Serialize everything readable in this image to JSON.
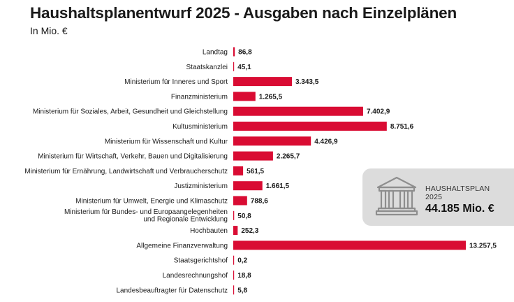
{
  "header": {
    "title": "Haushaltsplanentwurf 2025 - Ausgaben nach Einzelplänen",
    "subtitle": "In Mio. €"
  },
  "summary": {
    "label": "HAUSHALTSPLAN 2025",
    "total": "44.185 Mio. €",
    "icon": "bank-building-icon"
  },
  "colors": {
    "bar": "#d90c33",
    "summary_bg": "#dcdcdc",
    "icon": "#8e8e8e"
  },
  "chart_data": {
    "type": "bar",
    "orientation": "horizontal",
    "title": "Haushaltsplanentwurf 2025 - Ausgaben nach Einzelplänen",
    "unit": "In Mio. €",
    "categories": [
      [
        "Landtag"
      ],
      [
        "Staatskanzlei"
      ],
      [
        "Ministerium für Inneres und Sport"
      ],
      [
        "Finanzministerium"
      ],
      [
        "Ministerium für Soziales, Arbeit, Gesundheit und Gleichstellung"
      ],
      [
        "Kultusministerium"
      ],
      [
        "Ministerium für Wissenschaft und Kultur"
      ],
      [
        "Ministerium für Wirtschaft, Verkehr, Bauen und Digitalisierung"
      ],
      [
        "Ministerium für Ernährung, Landwirtschaft und Verbraucherschutz"
      ],
      [
        "Justizministerium"
      ],
      [
        "Ministerium für Umwelt, Energie und Klimaschutz"
      ],
      [
        "Ministerium für Bundes- und Europaangelegenheiten",
        "und Regionale Entwicklung"
      ],
      [
        "Hochbauten"
      ],
      [
        "Allgemeine Finanzverwaltung"
      ],
      [
        "Staatsgerichtshof"
      ],
      [
        "Landesrechnungshof"
      ],
      [
        "Landesbeauftragter für Datenschutz"
      ]
    ],
    "values": [
      86.8,
      45.1,
      3343.5,
      1265.5,
      7402.9,
      8751.6,
      4426.9,
      2265.7,
      561.5,
      1661.5,
      788.6,
      50.8,
      252.3,
      13257.5,
      0.2,
      18.8,
      5.8
    ],
    "value_labels": [
      "86,8",
      "45,1",
      "3.343,5",
      "1.265,5",
      "7.402,9",
      "8.751,6",
      "4.426,9",
      "2.265,7",
      "561,5",
      "1.661,5",
      "788,6",
      "50,8",
      "252,3",
      "13.257,5",
      "0,2",
      "18,8",
      "5,8"
    ],
    "xlim": [
      0,
      13257.5
    ],
    "grid": false,
    "legend": "none"
  }
}
